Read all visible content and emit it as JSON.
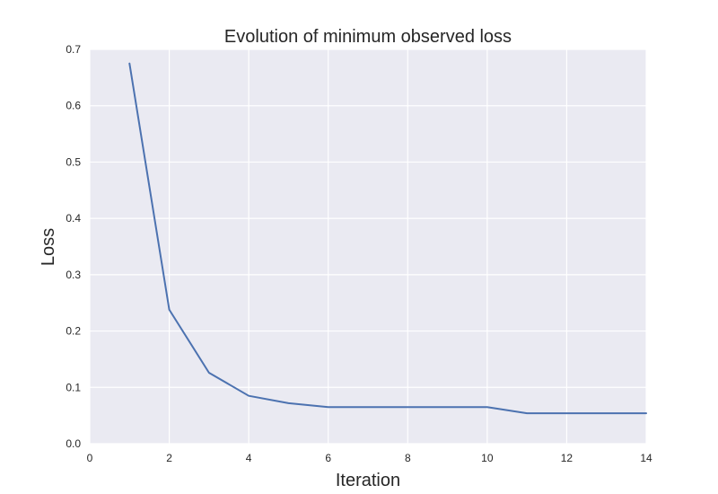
{
  "chart_data": {
    "type": "line",
    "title": "Evolution of minimum observed loss",
    "xlabel": "Iteration",
    "ylabel": "Loss",
    "xlim": [
      0,
      14
    ],
    "ylim": [
      0.0,
      0.7
    ],
    "xticks": [
      0,
      2,
      4,
      6,
      8,
      10,
      12,
      14
    ],
    "yticks": [
      0.0,
      0.1,
      0.2,
      0.3,
      0.4,
      0.5,
      0.6,
      0.7
    ],
    "xtick_labels": [
      "0",
      "2",
      "4",
      "6",
      "8",
      "10",
      "12",
      "14"
    ],
    "ytick_labels": [
      "0.0",
      "0.1",
      "0.2",
      "0.3",
      "0.4",
      "0.5",
      "0.6",
      "0.7"
    ],
    "grid": true,
    "series": [
      {
        "x": [
          1,
          2,
          3,
          4,
          5,
          6,
          7,
          8,
          9,
          10,
          11,
          12,
          13,
          14
        ],
        "y": [
          0.675,
          0.238,
          0.126,
          0.085,
          0.072,
          0.065,
          0.065,
          0.065,
          0.065,
          0.065,
          0.054,
          0.054,
          0.054,
          0.054
        ],
        "color": "#4c72b0"
      }
    ],
    "colors": {
      "plot_background": "#eaeaf2",
      "grid": "#ffffff",
      "text": "#262626"
    }
  }
}
